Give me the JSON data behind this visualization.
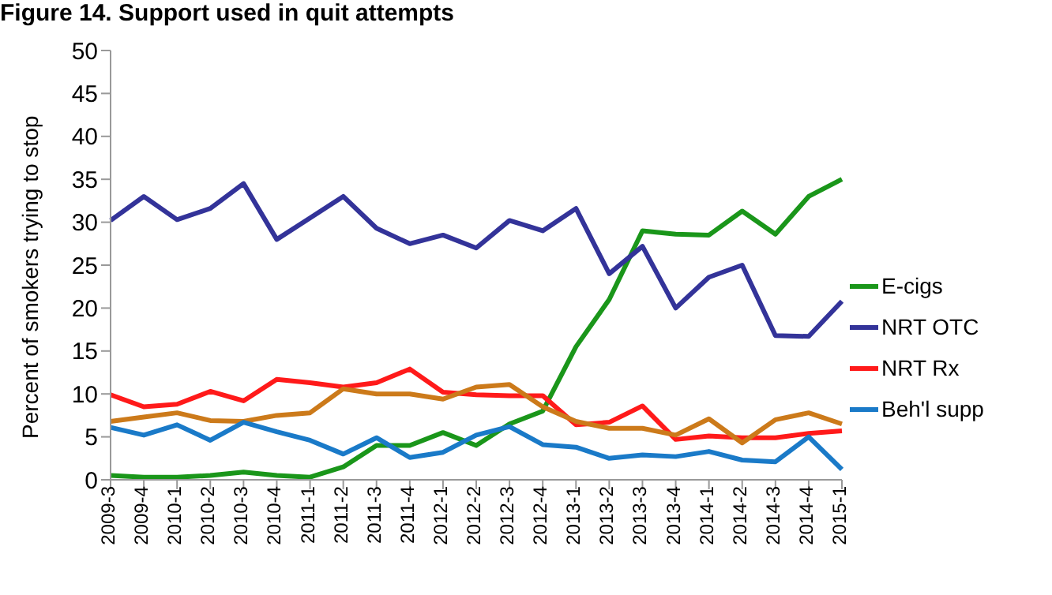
{
  "chart_data": {
    "type": "line",
    "title": "Figure 14. Support used in quit attempts",
    "ylabel": "Percent of smokers trying to stop",
    "categories": [
      "2009-3",
      "2009-4",
      "2010-1",
      "2010-2",
      "2010-3",
      "2010-4",
      "2011-1",
      "2011-2",
      "2011-3",
      "2011-4",
      "2012-1",
      "2012-2",
      "2012-3",
      "2012-4",
      "2013-1",
      "2013-2",
      "2013-3",
      "2013-4",
      "2014-1",
      "2014-2",
      "2014-3",
      "2014-4",
      "2015-1"
    ],
    "series": [
      {
        "name": "E-cigs",
        "color": "#1a961a",
        "values": [
          0.5,
          0.3,
          0.3,
          0.5,
          0.9,
          0.5,
          0.3,
          1.5,
          4,
          4,
          5.5,
          4,
          6.5,
          8,
          15.5,
          21,
          29,
          28.6,
          28.5,
          31.3,
          28.6,
          33,
          35
        ]
      },
      {
        "name": "NRT OTC",
        "color": "#333399",
        "values": [
          30.2,
          33,
          30.3,
          31.6,
          34.5,
          28,
          30.5,
          33,
          29.3,
          27.5,
          28.5,
          27,
          30.2,
          29,
          31.6,
          24,
          27.2,
          20,
          23.6,
          25,
          16.8,
          16.7,
          20.8
        ]
      },
      {
        "name": "NRT Rx",
        "color": "#ff1a1a",
        "values": [
          9.9,
          8.5,
          8.8,
          10.3,
          9.2,
          11.7,
          11.3,
          10.8,
          11.3,
          12.9,
          10.2,
          9.9,
          9.8,
          9.8,
          6.4,
          6.7,
          8.6,
          4.7,
          5.1,
          4.9,
          4.9,
          5.4,
          5.7
        ]
      },
      {
        "color": "#cc7a1a",
        "values": [
          6.8,
          7.3,
          7.8,
          6.9,
          6.8,
          7.5,
          7.8,
          10.6,
          10,
          10,
          9.4,
          10.8,
          11.1,
          8.5,
          6.8,
          6,
          6,
          5.2,
          7.1,
          4.3,
          7,
          7.8,
          6.5
        ]
      },
      {
        "name": "Beh'l supp",
        "color": "#1a7ac8",
        "values": [
          6.1,
          5.2,
          6.4,
          4.6,
          6.7,
          5.6,
          4.6,
          3,
          4.9,
          2.6,
          3.2,
          5.2,
          6.2,
          4.1,
          3.8,
          2.5,
          2.9,
          2.7,
          3.3,
          2.3,
          2.1,
          5,
          1.2
        ]
      }
    ],
    "ylim": [
      0,
      50
    ],
    "yticks": [
      0,
      5,
      10,
      15,
      20,
      25,
      30,
      35,
      40,
      45,
      50
    ],
    "grid": false,
    "legend": "right",
    "marker": "none",
    "line_style": "solid"
  }
}
